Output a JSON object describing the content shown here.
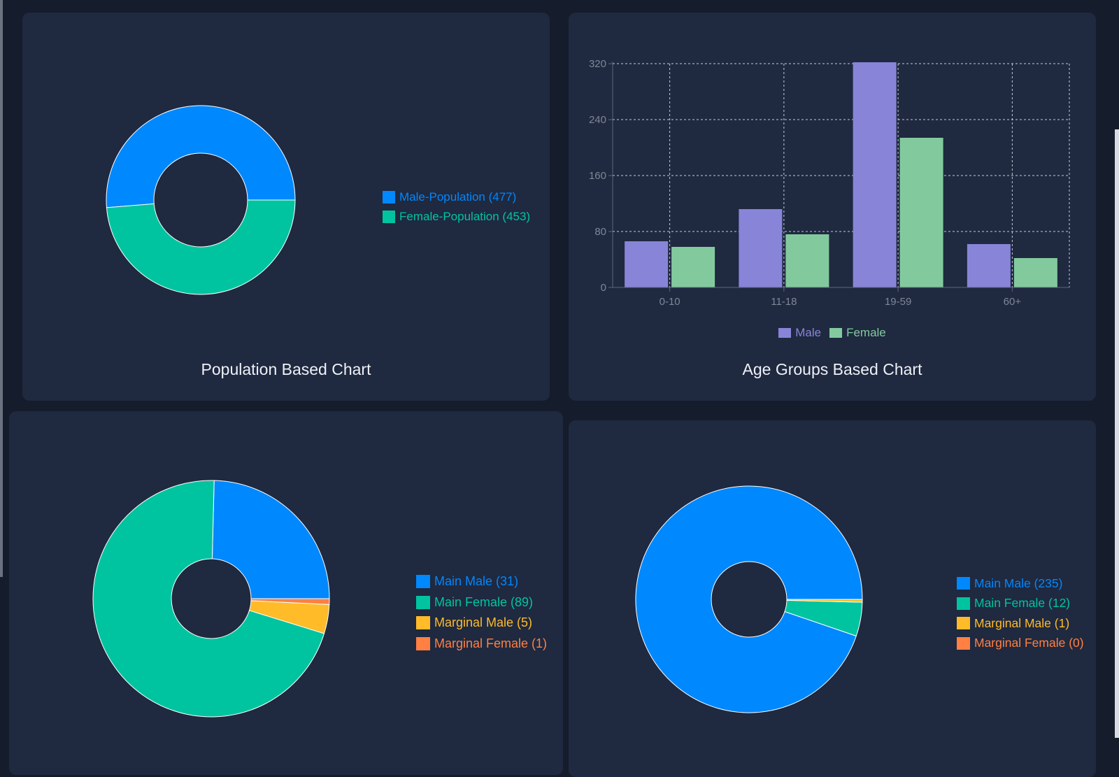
{
  "colors": {
    "page_bg": "#151c2b",
    "card_bg": "#1f2940",
    "title_text": "#eef1f6",
    "axis_text": "#7f8796",
    "grid": "#c8ccd4",
    "slice_border": "#ffffff"
  },
  "chart_data": [
    {
      "id": "population",
      "type": "pie",
      "donut": true,
      "title": "Population Based Chart",
      "legend_position": "right",
      "slices": [
        {
          "label": "Male-Population (477)",
          "value": 477,
          "color": "#0088fe"
        },
        {
          "label": "Female-Population (453)",
          "value": 453,
          "color": "#00c49f"
        }
      ]
    },
    {
      "id": "age_groups",
      "type": "bar",
      "title": "Age Groups Based Chart",
      "categories": [
        "0-10",
        "11-18",
        "19-59",
        "60+"
      ],
      "series": [
        {
          "name": "Male",
          "values": [
            66,
            112,
            322,
            62
          ],
          "color": "#8884d8"
        },
        {
          "name": "Female",
          "values": [
            58,
            76,
            214,
            42
          ],
          "color": "#82ca9d"
        }
      ],
      "yticks": [
        "0",
        "80",
        "160",
        "240",
        "320"
      ],
      "ylim": [
        0,
        320
      ],
      "grid": true,
      "legend_position": "bottom"
    },
    {
      "id": "main_marginal_1",
      "type": "pie",
      "donut": true,
      "legend_position": "right",
      "slices": [
        {
          "label": "Main Male (31)",
          "value": 31,
          "color": "#0088fe"
        },
        {
          "label": "Main Female (89)",
          "value": 89,
          "color": "#00c49f"
        },
        {
          "label": "Marginal Male (5)",
          "value": 5,
          "color": "#ffbb28"
        },
        {
          "label": "Marginal Female (1)",
          "value": 1,
          "color": "#ff8042"
        }
      ]
    },
    {
      "id": "main_marginal_2",
      "type": "pie",
      "donut": true,
      "legend_position": "right",
      "slices": [
        {
          "label": "Main Male (235)",
          "value": 235,
          "color": "#0088fe"
        },
        {
          "label": "Main Female (12)",
          "value": 12,
          "color": "#00c49f"
        },
        {
          "label": "Marginal Male (1)",
          "value": 1,
          "color": "#ffbb28"
        },
        {
          "label": "Marginal Female (0)",
          "value": 0,
          "color": "#ff8042"
        }
      ]
    }
  ]
}
